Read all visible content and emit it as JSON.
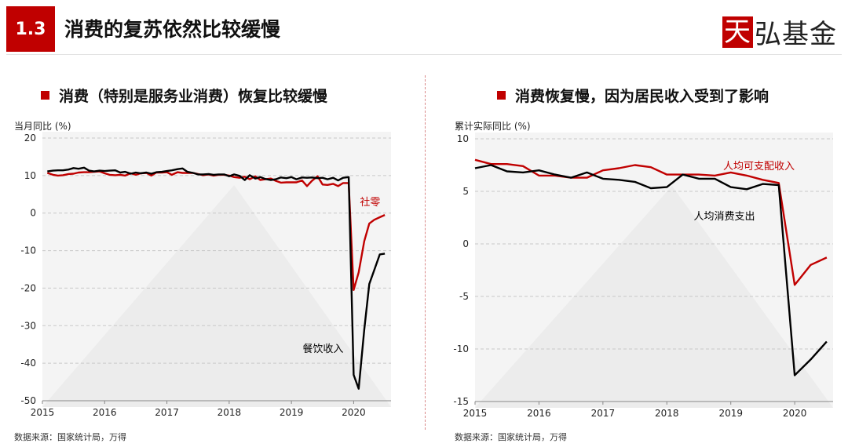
{
  "header": {
    "section_number": "1.3",
    "title": "消费的复苏依然比较缓慢",
    "logo_text": "天弘基金",
    "brand_color": "#c00000"
  },
  "chart_data": [
    {
      "type": "line",
      "title": "消费（特别是服务业消费）恢复比较缓慢",
      "unit_label": "当月同比 (%)",
      "source": "数据来源：国家统计局，万得",
      "xlim": [
        2015.0,
        2020.6
      ],
      "ylim": [
        -50,
        20
      ],
      "yticks": [
        20,
        10,
        0,
        -10,
        -20,
        -30,
        -40,
        -50
      ],
      "xticks": [
        2015,
        2016,
        2017,
        2018,
        2019,
        2020
      ],
      "grid": "horizontal dashed",
      "series": [
        {
          "name": "社零",
          "color": "#c00000",
          "label_at": [
            2020.1,
            2
          ],
          "x": [
            2015.08,
            2015.17,
            2015.25,
            2015.33,
            2015.42,
            2015.5,
            2015.58,
            2015.67,
            2015.75,
            2015.83,
            2015.92,
            2016.0,
            2016.08,
            2016.17,
            2016.25,
            2016.33,
            2016.42,
            2016.5,
            2016.58,
            2016.67,
            2016.75,
            2016.83,
            2016.92,
            2017.0,
            2017.08,
            2017.17,
            2017.25,
            2017.33,
            2017.42,
            2017.5,
            2017.58,
            2017.67,
            2017.75,
            2017.83,
            2017.92,
            2018.0,
            2018.08,
            2018.17,
            2018.25,
            2018.33,
            2018.42,
            2018.5,
            2018.58,
            2018.67,
            2018.75,
            2018.83,
            2018.92,
            2019.0,
            2019.08,
            2019.17,
            2019.25,
            2019.33,
            2019.42,
            2019.5,
            2019.58,
            2019.67,
            2019.75,
            2019.83,
            2019.92,
            2020.0,
            2020.08,
            2020.17,
            2020.25,
            2020.33,
            2020.42,
            2020.5
          ],
          "values": [
            10.7,
            10.2,
            10.0,
            10.1,
            10.4,
            10.5,
            10.8,
            10.9,
            10.9,
            11.0,
            11.1,
            10.6,
            10.2,
            10.1,
            10.2,
            10.0,
            10.6,
            10.2,
            10.6,
            10.7,
            10.0,
            10.8,
            10.8,
            10.9,
            10.2,
            10.9,
            10.7,
            10.7,
            10.7,
            10.4,
            10.1,
            10.3,
            10.0,
            10.2,
            10.2,
            10.0,
            9.6,
            9.4,
            9.7,
            9.0,
            9.8,
            8.8,
            9.0,
            9.2,
            8.6,
            8.1,
            8.2,
            8.2,
            8.2,
            8.7,
            7.2,
            8.6,
            9.8,
            7.6,
            7.5,
            7.8,
            7.2,
            8.0,
            8.0,
            -20.5,
            -15.8,
            -7.5,
            -2.8,
            -1.8,
            -1.1,
            -0.5
          ]
        },
        {
          "name": "餐饮收入",
          "color": "#000000",
          "label_at": [
            2019.18,
            -37
          ],
          "x": [
            2015.08,
            2015.17,
            2015.25,
            2015.33,
            2015.42,
            2015.5,
            2015.58,
            2015.67,
            2015.75,
            2015.83,
            2015.92,
            2016.0,
            2016.08,
            2016.17,
            2016.25,
            2016.33,
            2016.42,
            2016.5,
            2016.58,
            2016.67,
            2016.75,
            2016.83,
            2016.92,
            2017.0,
            2017.08,
            2017.17,
            2017.25,
            2017.33,
            2017.42,
            2017.5,
            2017.58,
            2017.67,
            2017.75,
            2017.83,
            2017.92,
            2018.0,
            2018.08,
            2018.17,
            2018.25,
            2018.33,
            2018.42,
            2018.5,
            2018.58,
            2018.67,
            2018.75,
            2018.83,
            2018.92,
            2019.0,
            2019.08,
            2019.17,
            2019.25,
            2019.33,
            2019.42,
            2019.5,
            2019.58,
            2019.67,
            2019.75,
            2019.83,
            2019.92,
            2020.0,
            2020.08,
            2020.17,
            2020.25,
            2020.33,
            2020.42,
            2020.5
          ],
          "values": [
            11.1,
            11.3,
            11.4,
            11.4,
            11.6,
            12.0,
            11.8,
            12.1,
            11.3,
            11.1,
            11.3,
            11.2,
            11.3,
            11.4,
            10.8,
            11.0,
            10.5,
            10.8,
            10.6,
            10.8,
            10.5,
            10.9,
            11.0,
            11.2,
            11.4,
            11.7,
            11.9,
            11.0,
            10.7,
            10.3,
            10.3,
            10.4,
            10.2,
            10.3,
            10.3,
            9.8,
            10.3,
            9.9,
            8.8,
            10.1,
            9.2,
            9.6,
            9.1,
            8.8,
            9.0,
            9.5,
            9.3,
            9.6,
            9.0,
            9.5,
            9.4,
            9.5,
            9.3,
            9.4,
            9.0,
            9.4,
            8.7,
            9.4,
            9.6,
            -43.1,
            -46.8,
            -31.1,
            -18.9,
            -15.2,
            -11.0,
            -10.8
          ]
        }
      ]
    },
    {
      "type": "line",
      "title": "消费恢复慢，因为居民收入受到了影响",
      "unit_label": "累计实际同比 (%)",
      "source": "数据来源：国家统计局，万得",
      "xlim": [
        2015.0,
        2020.6
      ],
      "ylim": [
        -15,
        10
      ],
      "yticks": [
        10,
        5,
        0,
        -5,
        -10,
        -15
      ],
      "xticks": [
        2015,
        2016,
        2017,
        2018,
        2019,
        2020
      ],
      "grid": "horizontal dashed",
      "series": [
        {
          "name": "人均可支配收入",
          "color": "#c00000",
          "label_at": [
            2018.88,
            7.1
          ],
          "x": [
            2015.0,
            2015.25,
            2015.5,
            2015.75,
            2016.0,
            2016.25,
            2016.5,
            2016.75,
            2017.0,
            2017.25,
            2017.5,
            2017.75,
            2018.0,
            2018.25,
            2018.5,
            2018.75,
            2019.0,
            2019.25,
            2019.5,
            2019.75,
            2020.0,
            2020.25,
            2020.5
          ],
          "values": [
            8.0,
            7.6,
            7.6,
            7.4,
            6.5,
            6.5,
            6.3,
            6.3,
            7.0,
            7.2,
            7.5,
            7.3,
            6.6,
            6.6,
            6.6,
            6.5,
            6.8,
            6.5,
            6.1,
            5.8,
            -3.9,
            -2.0,
            -1.3
          ]
        },
        {
          "name": "人均消费支出",
          "color": "#000000",
          "label_at": [
            2018.42,
            2.3
          ],
          "x": [
            2015.0,
            2015.25,
            2015.5,
            2015.75,
            2016.0,
            2016.25,
            2016.5,
            2016.75,
            2017.0,
            2017.25,
            2017.5,
            2017.75,
            2018.0,
            2018.25,
            2018.5,
            2018.75,
            2019.0,
            2019.25,
            2019.5,
            2019.75,
            2020.0,
            2020.25,
            2020.5
          ],
          "values": [
            7.2,
            7.5,
            6.9,
            6.8,
            7.0,
            6.6,
            6.3,
            6.8,
            6.2,
            6.1,
            5.9,
            5.3,
            5.4,
            6.6,
            6.2,
            6.2,
            5.4,
            5.2,
            5.7,
            5.6,
            -12.5,
            -11.0,
            -9.3
          ]
        }
      ]
    }
  ]
}
